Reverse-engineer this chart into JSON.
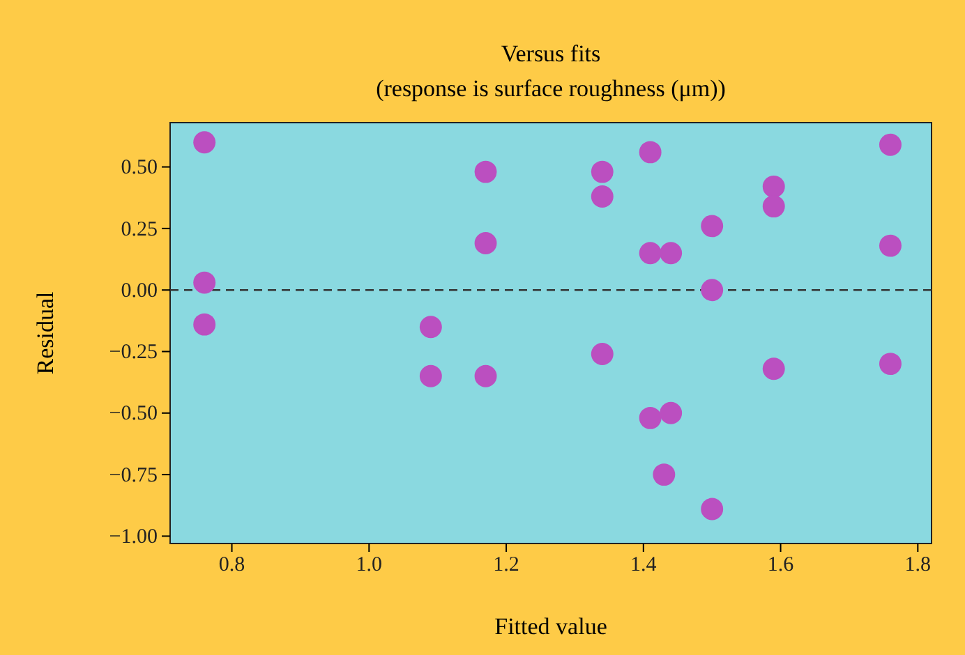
{
  "chart_data": {
    "type": "scatter",
    "title": "Versus fits",
    "subtitle": "(response is surface roughness (μm))",
    "xlabel": "Fitted value",
    "ylabel": "Residual",
    "x": [
      0.76,
      0.76,
      0.76,
      1.09,
      1.09,
      1.17,
      1.17,
      1.17,
      1.34,
      1.34,
      1.34,
      1.41,
      1.41,
      1.44,
      1.41,
      1.44,
      1.43,
      1.5,
      1.5,
      1.5,
      1.59,
      1.59,
      1.59,
      1.76,
      1.76,
      1.76
    ],
    "values": [
      0.6,
      0.03,
      -0.14,
      -0.15,
      -0.35,
      0.48,
      0.19,
      -0.35,
      0.48,
      0.38,
      -0.26,
      0.56,
      0.15,
      0.15,
      -0.52,
      -0.5,
      -0.75,
      0.26,
      0.0,
      -0.89,
      0.42,
      0.34,
      -0.32,
      0.59,
      0.18,
      -0.3
    ],
    "color": "#bb4fc0",
    "marker": "circle",
    "xlim": [
      0.71,
      1.82
    ],
    "ylim": [
      -1.03,
      0.68
    ],
    "xticks": [
      0.8,
      {
        "value": 1,
        "label": "1.0"
      },
      1.2,
      1.4,
      1.6,
      1.8
    ],
    "yticks": [
      {
        "value": -1,
        "label": "−1.00"
      },
      {
        "value": -0.75,
        "label": "−0.75"
      },
      {
        "value": -0.5,
        "label": "−0.50"
      },
      {
        "value": -0.25,
        "label": "−0.25"
      },
      {
        "value": 0,
        "label": "0.00"
      },
      {
        "value": 0.25,
        "label": "0.25"
      },
      {
        "value": 0.5,
        "label": "0.50"
      }
    ],
    "ref_lines": [
      {
        "axis": "y",
        "value": 0,
        "color": "#333333",
        "line_style": "dashed"
      }
    ],
    "grid": false
  }
}
